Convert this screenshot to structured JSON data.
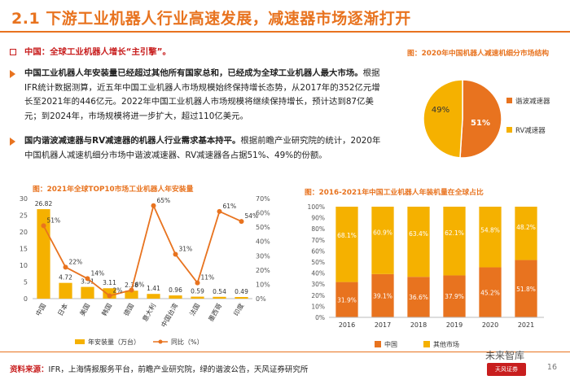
{
  "header": {
    "title": "2.1 下游工业机器人行业高速发展，减速器市场逐渐打开"
  },
  "section": {
    "heading": "中国：全球工业机器人增长“主引擎”。"
  },
  "p1": {
    "bold": "中国工业机器人年安装量已经超过其他所有国家总和，已经成为全球工业机器人最大市场。",
    "text": "根据IFR统计数据测算，近五年中国工业机器人市场规模始终保持增长态势，从2017年的352亿元增长至2021年的446亿元。2022年中国工业机器人市场规模将继续保持增长，预计达到87亿美元；到2024年，市场规模将进一步扩大，超过110亿美元。"
  },
  "p2": {
    "bold": "国内谐波减速器与RV减速器的机器人行业需求基本持平。",
    "text": "根据前瞻产业研究院的统计，2020年中国机器人减速机细分市场中谐波减速器、RV减速器各占据51%、49%的份额。"
  },
  "pie_title": "图：2020年中国机器人减速机细分市场结构",
  "bar1_title": "图：2021年全球TOP10市场工业机器人年安装量",
  "bar2_title": "图：2016-2021年中国工业机器人年装机量在全球占比",
  "colors": {
    "accent": "#e8731f",
    "gold": "#f5b100",
    "light": "#fdd36a"
  },
  "chart_data": [
    {
      "type": "pie",
      "labels": [
        "谐波减速器",
        "RV减速器"
      ],
      "values": [
        51,
        49
      ],
      "value_labels": [
        "51%",
        "49%"
      ]
    },
    {
      "type": "bar",
      "categories": [
        "中国",
        "日本",
        "美国",
        "韩国",
        "德国",
        "意大利",
        "中国台湾",
        "法国",
        "墨西哥",
        "印度"
      ],
      "series": [
        {
          "name": "年安装量（万台）",
          "values": [
            26.82,
            4.72,
            3.51,
            3.11,
            2.38,
            1.41,
            0.96,
            0.59,
            0.54,
            0.49
          ]
        },
        {
          "name": "同比（%）",
          "values": [
            51,
            22,
            14,
            2,
            6,
            65,
            31,
            11,
            61,
            54
          ]
        }
      ],
      "bar_labels": [
        "26.82",
        "4.72",
        "3.51",
        "3.11",
        "2.38",
        "1.41",
        "0.96",
        "0.59",
        "0.54",
        "0.49"
      ],
      "line_labels": [
        "51%",
        "22%",
        "14%",
        "2%",
        "6%",
        "65%",
        "31%",
        "11%",
        "61%",
        "54%"
      ],
      "y_left_ticks": [
        "0",
        "5",
        "10",
        "15",
        "20",
        "25",
        "30"
      ],
      "y_right_ticks": [
        "0%",
        "10%",
        "20%",
        "30%",
        "40%",
        "50%",
        "60%",
        "70%"
      ],
      "ylim_left": [
        0,
        30
      ],
      "ylim_right": [
        0,
        70
      ]
    },
    {
      "type": "bar",
      "stacked": true,
      "categories": [
        "2016",
        "2017",
        "2018",
        "2019",
        "2020",
        "2021"
      ],
      "series": [
        {
          "name": "中国",
          "values": [
            31.9,
            39.1,
            36.6,
            37.9,
            45.2,
            51.8
          ]
        },
        {
          "name": "其他市场",
          "values": [
            68.1,
            60.9,
            63.4,
            62.1,
            54.8,
            48.2
          ]
        }
      ],
      "china_labels": [
        "31.9%",
        "39.1%",
        "36.6%",
        "37.9%",
        "45.2%",
        "51.8%"
      ],
      "other_labels": [
        "68.1%",
        "60.9%",
        "63.4%",
        "62.1%",
        "54.8%",
        "48.2%"
      ],
      "y_ticks": [
        "0%",
        "10%",
        "20%",
        "30%",
        "40%",
        "50%",
        "60%",
        "70%",
        "80%",
        "90%",
        "100%"
      ],
      "ylim": [
        0,
        100
      ]
    }
  ],
  "footer": {
    "label": "资料来源：",
    "text": "IFR，上海情报服务平台，前瞻产业研究院，绿的谐波公告，天风证券研究所",
    "page": "16",
    "logo": "天风证券",
    "watermark": "未来智库"
  }
}
